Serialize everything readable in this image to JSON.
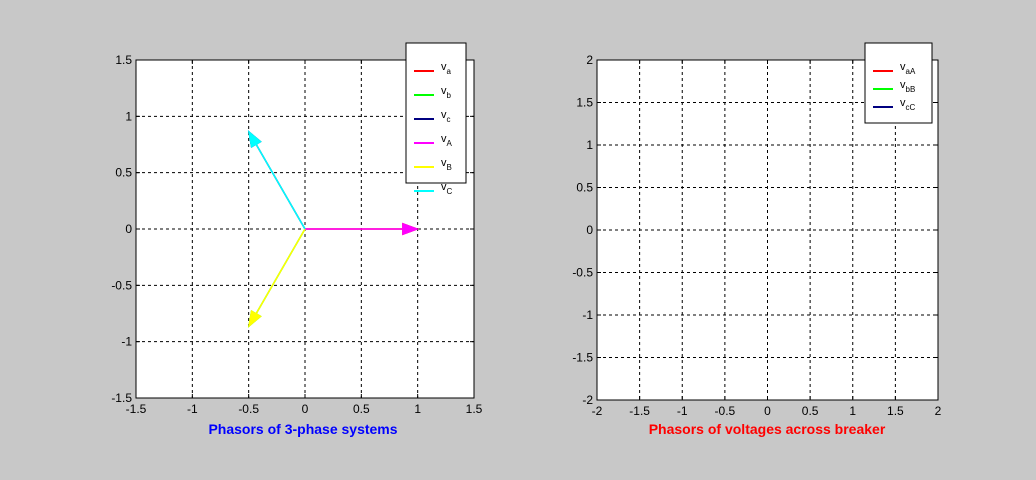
{
  "colors": {
    "background": "#c8c8c8",
    "axes_bg": "#ffffff",
    "title1": "#0000ff",
    "title2": "#ff0000"
  },
  "chart_data": [
    {
      "type": "line",
      "subtype": "phasor",
      "title": "Phasors of 3-phase systems",
      "title_color": "#0000ff",
      "xlabel": "",
      "ylabel": "",
      "xlim": [
        -1.5,
        1.5
      ],
      "ylim": [
        -1.5,
        1.5
      ],
      "xticks": [
        -1.5,
        -1,
        -0.5,
        0,
        0.5,
        1,
        1.5
      ],
      "yticks": [
        -1.5,
        -1,
        -0.5,
        0,
        0.5,
        1,
        1.5
      ],
      "xtick_labels": [
        "-1.5",
        "-1",
        "-0.5",
        "0",
        "0.5",
        "1",
        "1.5"
      ],
      "ytick_labels": [
        "-1.5",
        "-1",
        "-0.5",
        "0",
        "0.5",
        "1",
        "1.5"
      ],
      "grid": true,
      "legend_position": "top-right",
      "series": [
        {
          "name": "v",
          "sub": "a",
          "color": "#ff0000",
          "x": [
            0,
            1
          ],
          "y": [
            0,
            0
          ]
        },
        {
          "name": "v",
          "sub": "b",
          "color": "#00ff00",
          "x": [
            0,
            -0.5
          ],
          "y": [
            0,
            -0.866
          ]
        },
        {
          "name": "v",
          "sub": "c",
          "color": "#000080",
          "x": [
            0,
            -0.5
          ],
          "y": [
            0,
            0.866
          ]
        },
        {
          "name": "v",
          "sub": "A",
          "color": "#ff00ff",
          "x": [
            0,
            1
          ],
          "y": [
            0,
            0
          ]
        },
        {
          "name": "v",
          "sub": "B",
          "color": "#ffff00",
          "x": [
            0,
            -0.5
          ],
          "y": [
            0,
            -0.866
          ]
        },
        {
          "name": "v",
          "sub": "C",
          "color": "#00ffff",
          "x": [
            0,
            -0.5
          ],
          "y": [
            0,
            0.866
          ]
        }
      ]
    },
    {
      "type": "line",
      "subtype": "phasor",
      "title": "Phasors of voltages across breaker",
      "title_color": "#ff0000",
      "xlabel": "",
      "ylabel": "",
      "xlim": [
        -2,
        2
      ],
      "ylim": [
        -2,
        2
      ],
      "xticks": [
        -2,
        -1.5,
        -1,
        -0.5,
        0,
        0.5,
        1,
        1.5,
        2
      ],
      "yticks": [
        -2,
        -1.5,
        -1,
        -0.5,
        0,
        0.5,
        1,
        1.5,
        2
      ],
      "xtick_labels": [
        "-2",
        "-1.5",
        "-1",
        "-0.5",
        "0",
        "0.5",
        "1",
        "1.5",
        "2"
      ],
      "ytick_labels": [
        "-2",
        "-1.5",
        "-1",
        "-0.5",
        "0",
        "0.5",
        "1",
        "1.5",
        "2"
      ],
      "grid": true,
      "legend_position": "top-right",
      "series": [
        {
          "name": "v",
          "sub": "aA",
          "color": "#ff0000",
          "x": [
            0,
            0
          ],
          "y": [
            0,
            0
          ]
        },
        {
          "name": "v",
          "sub": "bB",
          "color": "#00ff00",
          "x": [
            0,
            0
          ],
          "y": [
            0,
            0
          ]
        },
        {
          "name": "v",
          "sub": "cC",
          "color": "#000080",
          "x": [
            0,
            0
          ],
          "y": [
            0,
            0
          ]
        }
      ]
    }
  ]
}
